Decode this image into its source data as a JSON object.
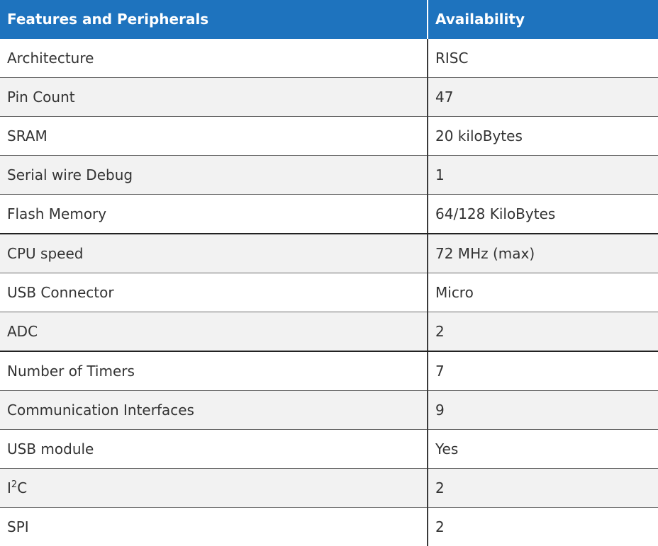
{
  "table": {
    "headers": [
      "Features and Peripherals",
      "Availability"
    ],
    "rows": [
      {
        "feature": "Architecture",
        "value": "RISC"
      },
      {
        "feature": "Pin Count",
        "value": "47"
      },
      {
        "feature": "SRAM",
        "value": "20 kiloBytes"
      },
      {
        "feature": "Serial wire Debug",
        "value": "1"
      },
      {
        "feature": "Flash Memory",
        "value": "64/128 KiloBytes"
      },
      {
        "feature": "CPU speed",
        "value": "72 MHz (max)"
      },
      {
        "feature": "USB Connector",
        "value": "Micro"
      },
      {
        "feature": "ADC",
        "value": "2"
      },
      {
        "feature": "Number of Timers",
        "value": "7"
      },
      {
        "feature": "Communication Interfaces",
        "value": "9"
      },
      {
        "feature": "USB module",
        "value": "Yes"
      },
      {
        "feature": "I2C",
        "feature_base": "I",
        "feature_sup": "2",
        "feature_tail": "C",
        "value": "2"
      },
      {
        "feature": "SPI",
        "value": "2"
      }
    ]
  },
  "colors": {
    "header_bg": "#1e73be",
    "header_text": "#ffffff",
    "row_alt_bg": "#f2f2f2",
    "body_text": "#333333"
  }
}
